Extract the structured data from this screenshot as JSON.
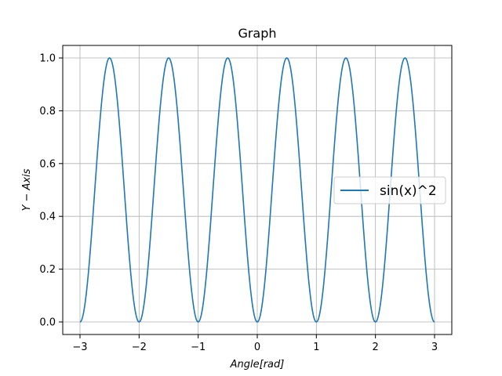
{
  "chart_data": {
    "type": "line",
    "title": "Graph",
    "xlabel": "Angle[rad]",
    "ylabel": "Y − Axis",
    "xlim": [
      -3,
      3
    ],
    "ylim": [
      0,
      1
    ],
    "x_ticks": [
      -3,
      -2,
      -1,
      0,
      1,
      2,
      3
    ],
    "x_tick_labels": [
      "−3",
      "−2",
      "−1",
      "0",
      "1",
      "2",
      "3"
    ],
    "y_ticks": [
      0,
      0.2,
      0.4,
      0.6,
      0.8,
      1.0
    ],
    "y_tick_labels": [
      "0.0",
      "0.2",
      "0.4",
      "0.6",
      "0.8",
      "1.0"
    ],
    "grid": true,
    "legend_position": "center-right",
    "series": [
      {
        "name": "sin(x)^2",
        "color": "#1f77b4",
        "formula": "sin(pi*x)^2",
        "x_range": [
          -3,
          3
        ],
        "x": [
          -3,
          -2.5,
          -2,
          -1.5,
          -1,
          -0.5,
          0,
          0.5,
          1,
          1.5,
          2,
          2.5,
          3
        ],
        "y": [
          0,
          1,
          0,
          1,
          0,
          1,
          0,
          1,
          0,
          1,
          0,
          1,
          0
        ]
      }
    ]
  }
}
